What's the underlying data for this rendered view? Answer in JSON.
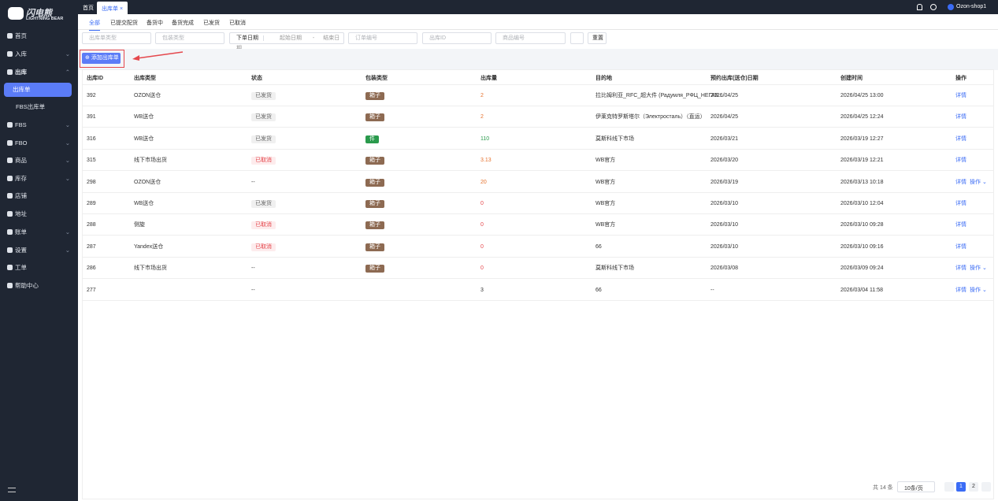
{
  "sidebar": {
    "logo_cn": "闪电熊",
    "logo_en": "LIGHTNING BEAR",
    "items": [
      {
        "label": "首页"
      },
      {
        "label": "入库",
        "has_children": true
      },
      {
        "label": "出库",
        "has_children": true,
        "open": true
      },
      {
        "label": "出库单",
        "sub": true,
        "active": true
      },
      {
        "label": "FBS出库单",
        "sub": true
      },
      {
        "label": "FBS",
        "has_children": true
      },
      {
        "label": "FBO",
        "has_children": true
      },
      {
        "label": "商品",
        "has_children": true
      },
      {
        "label": "库存",
        "has_children": true
      },
      {
        "label": "店铺"
      },
      {
        "label": "地址"
      },
      {
        "label": "账单",
        "has_children": true
      },
      {
        "label": "设置",
        "has_children": true
      },
      {
        "label": "工单"
      },
      {
        "label": "帮助中心"
      }
    ]
  },
  "topbar": {
    "home": "首页",
    "tab": "出库单",
    "shop": "Ozon-shop1"
  },
  "status_tabs": [
    "全部",
    "已提交配货",
    "备货中",
    "备货完成",
    "已发货",
    "已取消"
  ],
  "filters": {
    "type": "出库单类型",
    "package": "包装类型",
    "date_label": "下单日期",
    "start": "起始日期",
    "sep": "-",
    "end": "结束日期",
    "order": "订单编号",
    "out_id": "出库ID",
    "product": "商品编号",
    "reset": "重置"
  },
  "add_button": "添加出库单",
  "table": {
    "headers": [
      "出库ID",
      "出库类型",
      "状态",
      "包装类型",
      "出库量",
      "目的地",
      "预约出库(送仓)日期",
      "创建时间",
      "操作"
    ],
    "rows": [
      {
        "cells": [
          "392",
          "OZON送仓",
          "已发货",
          "箱子",
          "2",
          "拉比姆利亚_RFC_超大件 (Радумля_РФЦ_НЕГАБ...",
          "2026/04/25",
          "2026/04/25 13:00"
        ],
        "ops": [
          "详情"
        ],
        "status_color": "#666",
        "status_bg": "#f0f0f0",
        "package_color": "#8d6a52",
        "qty_color": "#e6722e"
      },
      {
        "cells": [
          "391",
          "WB送仓",
          "已发货",
          "箱子",
          "2",
          "伊莱克特罗斯塔尔（Электросталь）（直运）",
          "2026/04/25",
          "2026/04/25 12:24"
        ],
        "ops": [
          "详情"
        ],
        "status_color": "#666",
        "status_bg": "#f0f0f0",
        "package_color": "#8d6a52",
        "qty_color": "#e6722e"
      },
      {
        "cells": [
          "316",
          "WB送仓",
          "已发货",
          "件",
          "110",
          "莫斯科线下市场",
          "2026/03/21",
          "2026/03/19 12:27"
        ],
        "ops": [
          "详情"
        ],
        "status_color": "#666",
        "status_bg": "#f0f0f0",
        "package_color": "#2a9a4c",
        "qty_color": "#2a9a4c"
      },
      {
        "cells": [
          "315",
          "线下市场出货",
          "已取消",
          "箱子",
          "3.13",
          "WB官方",
          "2026/03/20",
          "2026/03/19 12:21"
        ],
        "ops": [
          "详情"
        ],
        "status_color": "#e5484d",
        "status_bg": "#fdeced",
        "package_color": "#8d6a52",
        "qty_color": "#e6722e"
      },
      {
        "cells": [
          "298",
          "OZON送仓",
          "--",
          "箱子",
          "20",
          "WB官方",
          "2026/03/19",
          "2026/03/13 10:18"
        ],
        "ops": [
          "详情",
          "操作"
        ],
        "package_color": "#8d6a52",
        "qty_color": "#e6722e"
      },
      {
        "cells": [
          "289",
          "WB送仓",
          "已发货",
          "箱子",
          "0",
          "WB官方",
          "2026/03/10",
          "2026/03/10 12:04"
        ],
        "ops": [
          "详情"
        ],
        "status_color": "#666",
        "status_bg": "#f0f0f0",
        "package_color": "#8d6a52",
        "qty_color": "#e5484d"
      },
      {
        "cells": [
          "288",
          "侧旋",
          "已取消",
          "箱子",
          "0",
          "WB官方",
          "2026/03/10",
          "2026/03/10 09:28"
        ],
        "ops": [
          "详情"
        ],
        "status_color": "#e5484d",
        "status_bg": "#fdeced",
        "package_color": "#8d6a52",
        "qty_color": "#e5484d"
      },
      {
        "cells": [
          "287",
          "Yandex送仓",
          "已取消",
          "箱子",
          "0",
          "66",
          "2026/03/10",
          "2026/03/10 09:16"
        ],
        "ops": [
          "详情"
        ],
        "status_color": "#e5484d",
        "status_bg": "#fdeced",
        "package_color": "#8d6a52",
        "qty_color": "#e5484d"
      },
      {
        "cells": [
          "286",
          "线下市场出货",
          "--",
          "箱子",
          "0",
          "莫斯科线下市场",
          "2026/03/08",
          "2026/03/09 09:24"
        ],
        "ops": [
          "详情",
          "操作"
        ],
        "package_color": "#8d6a52",
        "qty_color": "#e5484d"
      },
      {
        "cells": [
          "277",
          null,
          "--",
          null,
          "3",
          "66",
          "--",
          "2026/03/04 11:58"
        ],
        "ops": [
          "详情",
          "操作"
        ],
        "qty_color": "#333"
      }
    ]
  },
  "pagination": {
    "total": "共 14 条",
    "page_size": "10条/页",
    "pages": [
      "1",
      "2"
    ]
  }
}
